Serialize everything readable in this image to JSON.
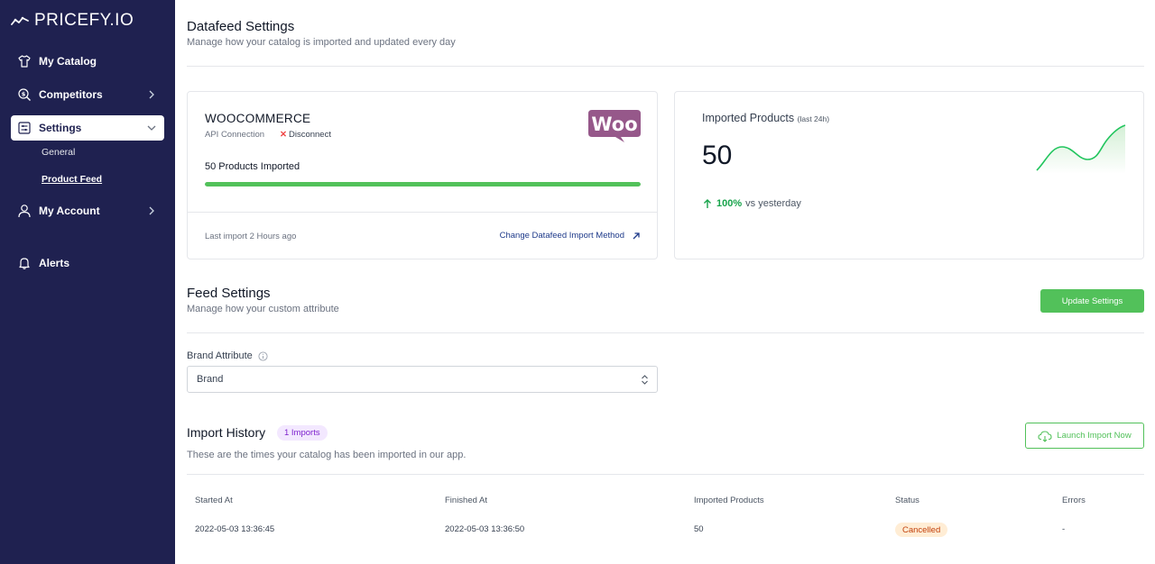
{
  "app": {
    "logo_text": "PRICEFY.IO"
  },
  "sidebar": {
    "items": [
      {
        "label": "My Catalog",
        "icon": "shirt-icon"
      },
      {
        "label": "Competitors",
        "icon": "search-dollar-icon"
      },
      {
        "label": "Settings",
        "icon": "settings-sliders-icon"
      },
      {
        "label": "My Account",
        "icon": "user-icon"
      },
      {
        "label": "Alerts",
        "icon": "bell-icon"
      }
    ],
    "settings_sub": [
      {
        "label": "General"
      },
      {
        "label": "Product Feed"
      }
    ]
  },
  "header": {
    "title": "Datafeed Settings",
    "subtitle": "Manage how your catalog is imported and updated every day"
  },
  "connection_card": {
    "platform": "WOOCOMMERCE",
    "connection_type": "API Connection",
    "disconnect_label": "Disconnect",
    "logo_text": "Woo",
    "imported_label": "50 Products Imported",
    "progress": 1.0,
    "last_import": "Last import 2 Hours ago",
    "change_link": "Change Datafeed Import Method"
  },
  "stats_card": {
    "title": "Imported Products",
    "title_note": "(last 24h)",
    "value": "50",
    "change_pct": "100%",
    "change_text": "vs yesterday"
  },
  "feed_settings": {
    "title": "Feed Settings",
    "subtitle": "Manage how your custom attribute",
    "update_button": "Update Settings",
    "brand_label": "Brand Attribute",
    "brand_value": "Brand"
  },
  "import_history": {
    "title": "Import History",
    "badge": "1 Imports",
    "subtitle": "These are the times your catalog has been imported in our app.",
    "launch_button": "Launch Import Now",
    "columns": [
      "Started At",
      "Finished At",
      "Imported Products",
      "Status",
      "Errors"
    ],
    "rows": [
      {
        "started": "2022-05-03 13:36:45",
        "finished": "2022-05-03 13:36:50",
        "imported": "50",
        "status": "Cancelled",
        "errors": "-"
      }
    ]
  },
  "colors": {
    "sidebar_bg": "#1f2150",
    "accent_green": "#52c15a",
    "woo_purple": "#96588a",
    "badge_purple": "#7e22ce",
    "status_orange": "#c2410c"
  }
}
